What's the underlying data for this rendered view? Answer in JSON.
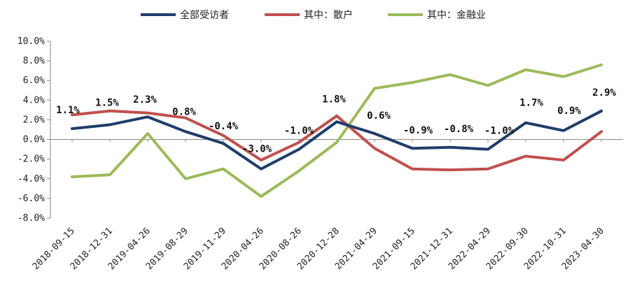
{
  "chart_data": {
    "type": "line",
    "title": "",
    "xlabel": "",
    "ylabel": "",
    "ylim": [
      -8.0,
      10.0
    ],
    "ytick_step": 2.0,
    "y_tick_labels": [
      "10.0%",
      "8.0%",
      "6.0%",
      "4.0%",
      "2.0%",
      "0.0%",
      "-2.0%",
      "-4.0%",
      "-6.0%",
      "-8.0%"
    ],
    "categories": [
      "2018-09-15",
      "2018-12-31",
      "2019-04-26",
      "2019-08-29",
      "2019-11-29",
      "2020-04-26",
      "2020-08-26",
      "2020-12-28",
      "2021-04-29",
      "2021-09-15",
      "2021-12-31",
      "2022-04-29",
      "2022-09-30",
      "2022-10-31",
      "2023-04-30"
    ],
    "legend_position": "top-center",
    "grid": false,
    "series": [
      {
        "name": "全部受访者",
        "color": "#1F3D6B",
        "values": [
          1.1,
          1.5,
          2.3,
          0.8,
          -0.4,
          -3.0,
          -1.0,
          1.8,
          0.6,
          -0.9,
          -0.8,
          -1.0,
          1.7,
          0.9,
          2.9
        ]
      },
      {
        "name": "其中：散户",
        "color": "#C0504D",
        "values": [
          2.5,
          2.9,
          2.7,
          2.2,
          0.4,
          -2.1,
          -0.3,
          2.4,
          -0.9,
          -3.0,
          -3.1,
          -3.0,
          -1.7,
          -2.1,
          0.8
        ]
      },
      {
        "name": "其中：金融业",
        "color": "#9BBB59",
        "values": [
          -3.8,
          -3.6,
          0.6,
          -4.0,
          -3.0,
          -5.8,
          -3.2,
          -0.3,
          5.2,
          5.8,
          6.6,
          5.5,
          7.1,
          6.4,
          7.6
        ]
      }
    ],
    "data_labels": [
      "1.1%",
      "1.5%",
      "2.3%",
      "0.8%",
      "-0.4%",
      "-3.0%",
      "-1.0%",
      "1.8%",
      "0.6%",
      "-0.9%",
      "-0.8%",
      "-1.0%",
      "1.7%",
      "0.9%",
      "2.9%"
    ]
  }
}
